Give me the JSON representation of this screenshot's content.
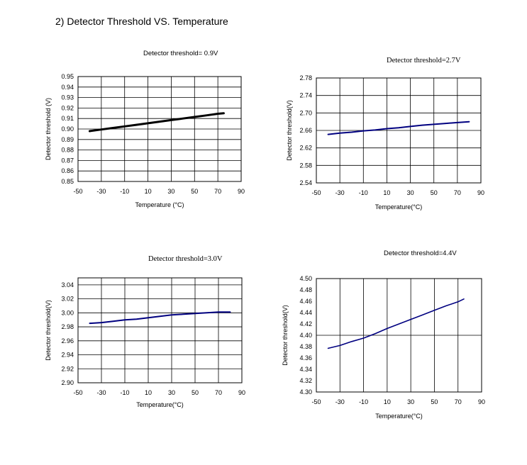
{
  "page": {
    "title": "2) Detector Threshold VS. Temperature"
  },
  "chart_data": [
    {
      "type": "line",
      "title": "Detector threshold= 0.9V",
      "xlabel": "Temperature (°C)",
      "ylabel": "Detector threshold (V)",
      "xlim": [
        -50,
        90
      ],
      "ylim": [
        0.85,
        0.95
      ],
      "xticks": [
        "-50",
        "-30",
        "-10",
        "10",
        "30",
        "50",
        "70",
        "90"
      ],
      "yticks": [
        "0.85",
        "0.86",
        "0.87",
        "0.88",
        "0.89",
        "0.90",
        "0.91",
        "0.92",
        "0.93",
        "0.94",
        "0.95"
      ],
      "grid": true,
      "series": [
        {
          "x": [
            -40,
            -30,
            -20,
            -10,
            0,
            10,
            20,
            30,
            40,
            50,
            60,
            70,
            75
          ],
          "values": [
            0.898,
            0.8995,
            0.901,
            0.9025,
            0.904,
            0.9055,
            0.907,
            0.9085,
            0.91,
            0.9115,
            0.913,
            0.9145,
            0.915
          ]
        }
      ],
      "line_color": "#000000"
    },
    {
      "type": "line",
      "title": "Detector threshold=2.7V",
      "xlabel": "Temperature(°C)",
      "ylabel": "Detector threshold(V)",
      "xlim": [
        -50,
        90
      ],
      "ylim": [
        2.54,
        2.78
      ],
      "xticks": [
        "-50",
        "-30",
        "-10",
        "10",
        "30",
        "50",
        "70",
        "90"
      ],
      "yticks": [
        "2.54",
        "2.58",
        "2.62",
        "2.66",
        "2.70",
        "2.74",
        "2.78"
      ],
      "hgrid": [
        2.58,
        2.62,
        2.66,
        2.7,
        2.74
      ],
      "grid": true,
      "series": [
        {
          "x": [
            -40,
            -30,
            -20,
            -10,
            0,
            10,
            20,
            30,
            40,
            50,
            60,
            70,
            80
          ],
          "values": [
            2.651,
            2.654,
            2.656,
            2.659,
            2.661,
            2.664,
            2.666,
            2.669,
            2.672,
            2.674,
            2.676,
            2.678,
            2.68
          ]
        }
      ],
      "line_color": "#000080"
    },
    {
      "type": "line",
      "title": "Detector threshold=3.0V",
      "xlabel": "Temperature(°C)",
      "ylabel": "Detector threshold(V)",
      "xlim": [
        -50,
        90
      ],
      "ylim": [
        2.9,
        3.05
      ],
      "xticks": [
        "-50",
        "-30",
        "-10",
        "10",
        "30",
        "50",
        "70",
        "90"
      ],
      "yticks": [
        "2.90",
        "2.92",
        "2.94",
        "2.96",
        "2.98",
        "3.00",
        "3.02",
        "3.04"
      ],
      "hgrid": [
        2.92,
        2.94,
        2.96,
        2.98,
        3.0,
        3.02,
        3.04
      ],
      "grid": true,
      "series": [
        {
          "x": [
            -40,
            -30,
            -20,
            -10,
            0,
            10,
            20,
            30,
            40,
            50,
            60,
            70,
            80
          ],
          "values": [
            2.985,
            2.986,
            2.988,
            2.99,
            2.991,
            2.993,
            2.995,
            2.997,
            2.998,
            2.999,
            3.0,
            3.001,
            3.001
          ]
        }
      ],
      "line_color": "#000080"
    },
    {
      "type": "line",
      "title": "Detector threshold=4.4V",
      "xlabel": "Temperature(°C)",
      "ylabel": "Detector threshold(V)",
      "xlim": [
        -50,
        90
      ],
      "ylim": [
        4.3,
        4.5
      ],
      "xticks": [
        "-50",
        "-30",
        "-10",
        "10",
        "30",
        "50",
        "70",
        "90"
      ],
      "yticks": [
        "4.30",
        "4.32",
        "4.34",
        "4.36",
        "4.38",
        "4.40",
        "4.42",
        "4.44",
        "4.46",
        "4.48",
        "4.50"
      ],
      "hgrid": [
        4.4
      ],
      "grid": true,
      "series": [
        {
          "x": [
            -40,
            -30,
            -20,
            -10,
            0,
            10,
            20,
            30,
            40,
            50,
            60,
            70,
            75
          ],
          "values": [
            4.377,
            4.382,
            4.389,
            4.395,
            4.403,
            4.412,
            4.42,
            4.428,
            4.436,
            4.444,
            4.452,
            4.459,
            4.464
          ]
        }
      ],
      "line_color": "#000080"
    }
  ]
}
